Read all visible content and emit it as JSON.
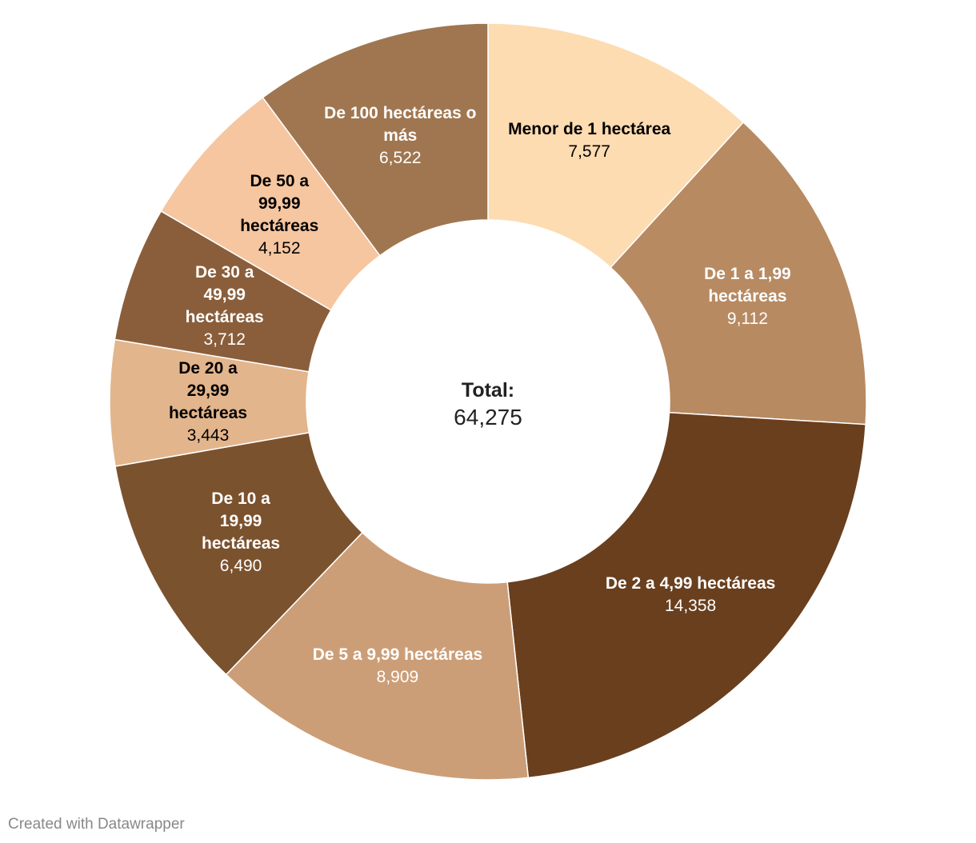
{
  "chart_data": {
    "type": "donut",
    "categories": [
      "Menor de 1 hectárea",
      "De 1 a 1,99 hectáreas",
      "De 2 a 4,99 hectáreas",
      "De 5 a 9,99 hectáreas",
      "De 10 a 19,99 hectáreas",
      "De 20 a 29,99 hectáreas",
      "De 30 a 49,99 hectáreas",
      "De 50 a 99,99 hectáreas",
      "De 100 hectáreas o más"
    ],
    "values": [
      7577,
      9112,
      14358,
      8909,
      6490,
      3443,
      3712,
      4152,
      6522
    ],
    "value_labels": [
      "7,577",
      "9,112",
      "14,358",
      "8,909",
      "6,490",
      "3,443",
      "3,712",
      "4,152",
      "6,522"
    ],
    "colors": [
      "#fddcb2",
      "#b78a62",
      "#693f1e",
      "#cc9e77",
      "#7b522e",
      "#e3b58c",
      "#8a5e3b",
      "#f6c6a0",
      "#a07650"
    ],
    "label_colors": [
      "#000000",
      "#ffffff",
      "#ffffff",
      "#ffffff",
      "#ffffff",
      "#000000",
      "#ffffff",
      "#000000",
      "#ffffff"
    ],
    "center_title": "Total:",
    "total": {
      "value": 64275,
      "label": "64,275"
    },
    "credit": "Created with Datawrapper"
  }
}
